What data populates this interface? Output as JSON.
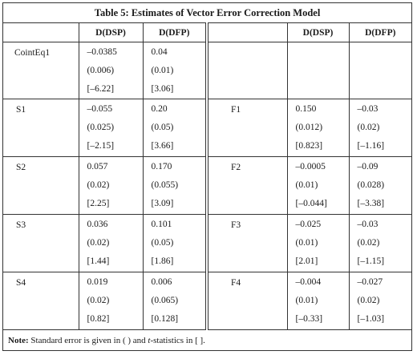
{
  "title": "Table 5: Estimates of Vector Error Correction Model",
  "headers": {
    "left": [
      "",
      "D(DSP)",
      "D(DFP)"
    ],
    "right": [
      "",
      "D(DSP)",
      "D(DFP)"
    ]
  },
  "rows": [
    {
      "left_label": "CointEq1",
      "left_dsp": [
        "–0.0385",
        "(0.006)",
        "[–6.22]"
      ],
      "left_dfp": [
        "0.04",
        "(0.01)",
        "[3.06]"
      ],
      "right_label": "",
      "right_dsp": [
        "",
        "",
        ""
      ],
      "right_dfp": [
        "",
        "",
        ""
      ]
    },
    {
      "left_label": "S1",
      "left_dsp": [
        "–0.055",
        "(0.025)",
        "[–2.15]"
      ],
      "left_dfp": [
        "0.20",
        "(0.05)",
        "[3.66]"
      ],
      "right_label": "F1",
      "right_dsp": [
        "0.150",
        "(0.012)",
        "[0.823]"
      ],
      "right_dfp": [
        "–0.03",
        "(0.02)",
        "[–1.16]"
      ]
    },
    {
      "left_label": "S2",
      "left_dsp": [
        "0.057",
        "(0.02)",
        "[2.25]"
      ],
      "left_dfp": [
        "0.170",
        "(0.055)",
        "[3.09]"
      ],
      "right_label": "F2",
      "right_dsp": [
        "–0.0005",
        "(0.01)",
        "[–0.044]"
      ],
      "right_dfp": [
        "–0.09",
        "(0.028)",
        "[–3.38]"
      ]
    },
    {
      "left_label": "S3",
      "left_dsp": [
        "0.036",
        "(0.02)",
        "[1.44]"
      ],
      "left_dfp": [
        "0.101",
        "(0.05)",
        "[1.86]"
      ],
      "right_label": "F3",
      "right_dsp": [
        "–0.025",
        "(0.01)",
        "[2.01]"
      ],
      "right_dfp": [
        "–0.03",
        "(0.02)",
        "[–1.15]"
      ]
    },
    {
      "left_label": "S4",
      "left_dsp": [
        "0.019",
        "(0.02)",
        "[0.82]"
      ],
      "left_dfp": [
        "0.006",
        "(0.065)",
        "[0.128]"
      ],
      "right_label": "F4",
      "right_dsp": [
        "–0.004",
        "(0.01)",
        "[–0.33]"
      ],
      "right_dfp": [
        "–0.027",
        "(0.02)",
        "[–1.03]"
      ]
    }
  ],
  "note": {
    "label": "Note:",
    "text_1": "Standard error is given in ( ) and ",
    "text_t": "t",
    "text_2": "-statistics in [ ]."
  }
}
